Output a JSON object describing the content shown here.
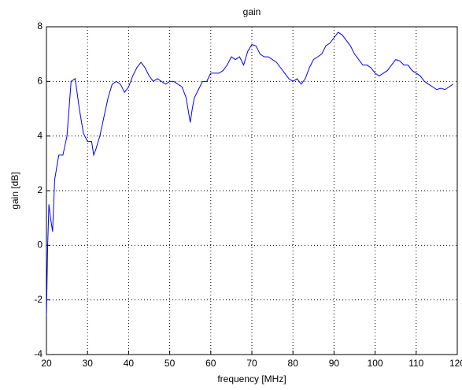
{
  "chart_data": {
    "type": "line",
    "title": "gain",
    "x_label": "frequency [MHz]",
    "y_label": "gain [dB]",
    "x": [
      20,
      20.3,
      20.6,
      21,
      21.5,
      22,
      23,
      24,
      25,
      26,
      27,
      28,
      29,
      30,
      31,
      31.5,
      32,
      33,
      34,
      35,
      36,
      37,
      38,
      39,
      40,
      41,
      42,
      43,
      44,
      45,
      46,
      47,
      48,
      49,
      50,
      51,
      52,
      53,
      54,
      55,
      55.5,
      56,
      57,
      58,
      59,
      60,
      61,
      62,
      63,
      64,
      65,
      66,
      67,
      68,
      69,
      70,
      71,
      72,
      73,
      74,
      75,
      76,
      77,
      78,
      79,
      80,
      81,
      82,
      83,
      84,
      85,
      86,
      87,
      88,
      89,
      90,
      91,
      92,
      93,
      94,
      95,
      96,
      97,
      98,
      99,
      100,
      101,
      102,
      103,
      104,
      105,
      106,
      107,
      108,
      109,
      110,
      111,
      112,
      113,
      114,
      115,
      116,
      117,
      118,
      119
    ],
    "series": [
      {
        "color": "#0000ff",
        "values": [
          -2.6,
          0,
          1.5,
          1.0,
          0.5,
          2.4,
          3.3,
          3.3,
          4.0,
          6.0,
          6.1,
          5.0,
          4.1,
          3.8,
          3.8,
          3.3,
          3.5,
          4.0,
          4.7,
          5.4,
          5.9,
          6.0,
          5.9,
          5.6,
          5.8,
          6.2,
          6.5,
          6.7,
          6.5,
          6.2,
          6.0,
          6.1,
          6.0,
          5.9,
          6.0,
          6.0,
          5.9,
          5.8,
          5.4,
          4.5,
          5.0,
          5.4,
          5.7,
          6.0,
          6.0,
          6.3,
          6.3,
          6.3,
          6.4,
          6.6,
          6.9,
          6.8,
          6.9,
          6.6,
          7.1,
          7.35,
          7.3,
          7.0,
          6.9,
          6.9,
          6.8,
          6.7,
          6.5,
          6.3,
          6.1,
          6.0,
          6.1,
          5.9,
          6.1,
          6.5,
          6.8,
          6.9,
          7.0,
          7.3,
          7.4,
          7.6,
          7.8,
          7.7,
          7.5,
          7.3,
          7.0,
          6.8,
          6.6,
          6.6,
          6.5,
          6.3,
          6.2,
          6.3,
          6.4,
          6.6,
          6.8,
          6.75,
          6.6,
          6.6,
          6.4,
          6.3,
          6.2,
          6.0,
          5.9,
          5.8,
          5.7,
          5.75,
          5.7,
          5.8,
          5.9
        ]
      }
    ],
    "xlim": [
      20,
      120
    ],
    "xticks": [
      20,
      30,
      40,
      50,
      60,
      70,
      80,
      90,
      100,
      110,
      120
    ],
    "ylim": [
      -4,
      8
    ],
    "yticks": [
      -4,
      -2,
      0,
      2,
      4,
      6,
      8
    ],
    "grid": true
  }
}
